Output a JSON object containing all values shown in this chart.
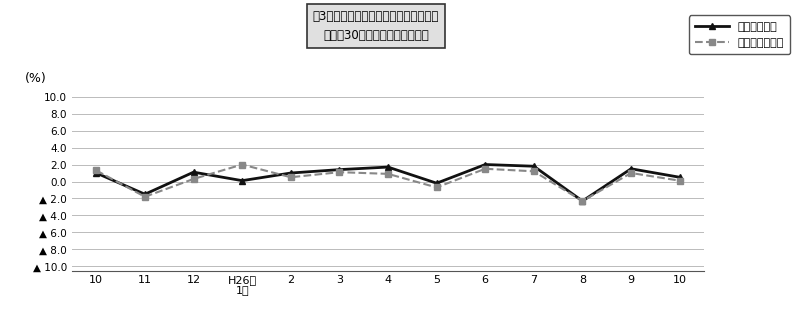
{
  "x_labels": [
    "10",
    "11",
    "12",
    "H26年\n1月",
    "2",
    "3",
    "4",
    "5",
    "6",
    "7",
    "8",
    "9",
    "10"
  ],
  "x_positions": [
    0,
    1,
    2,
    3,
    4,
    5,
    6,
    7,
    8,
    9,
    10,
    11,
    12
  ],
  "total_hours": [
    1.0,
    -1.5,
    1.1,
    0.1,
    1.0,
    1.4,
    1.7,
    -0.2,
    2.0,
    1.8,
    -2.3,
    1.5,
    0.5
  ],
  "scheduled_hours": [
    1.3,
    -1.8,
    0.3,
    2.0,
    0.5,
    1.1,
    0.9,
    -0.7,
    1.5,
    1.2,
    -2.3,
    1.0,
    0.1
  ],
  "yticks": [
    10.0,
    8.0,
    6.0,
    4.0,
    2.0,
    0.0,
    -2.0,
    -4.0,
    -6.0,
    -8.0,
    -10.0
  ],
  "ytick_labels": [
    "10.0",
    "8.0",
    "6.0",
    "4.0",
    "2.0",
    "0.0",
    "▲ 2.0",
    "▲ 4.0",
    "▲ 6.0",
    "▲ 8.0",
    "▲ 10.0"
  ],
  "ylim": [
    -10.5,
    10.5
  ],
  "ylabel": "(%)",
  "title_line1": "図3　労働時間の推移（対前年同月比）",
  "title_line2": "－規樨30人以上－　調査産業計",
  "legend_total": "総実労働時間",
  "legend_scheduled": "所定内労働時間",
  "background_color": "#ffffff",
  "grid_color": "#bbbbbb",
  "line_color_total": "#111111",
  "line_color_scheduled": "#888888",
  "title_box_bg": "#e0e0e0",
  "title_box_border": "#333333"
}
